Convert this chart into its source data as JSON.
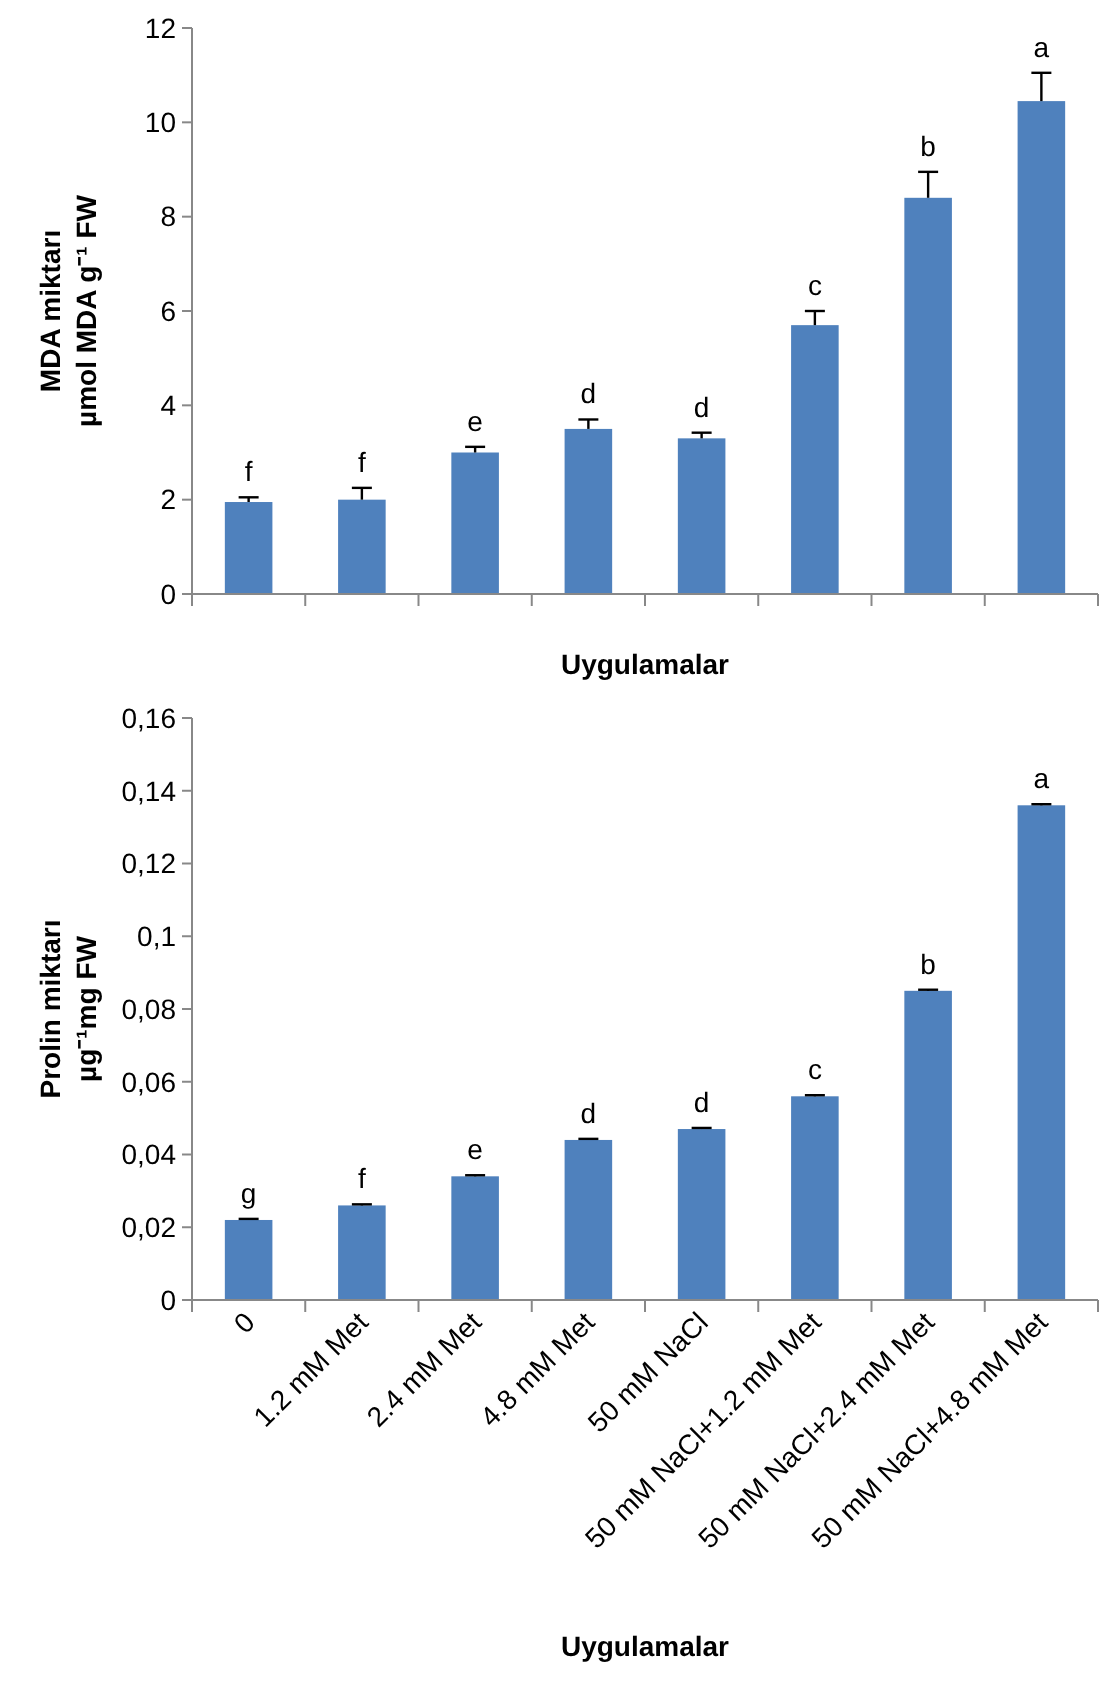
{
  "chart_data": [
    {
      "type": "bar",
      "xlabel": "Uygulamalar",
      "ylabel": "MDA miktarı\nµmol MDA g⁻¹ FW",
      "categories": [
        null,
        null,
        null,
        null,
        null,
        null,
        null,
        null
      ],
      "values": [
        1.95,
        2.0,
        3.0,
        3.5,
        3.3,
        5.7,
        8.4,
        10.45
      ],
      "color": "#4f81bd",
      "errors": [
        [
          1.95,
          2.05
        ],
        [
          2.0,
          2.25
        ],
        [
          3.0,
          3.12
        ],
        [
          3.5,
          3.7
        ],
        [
          3.3,
          3.42
        ],
        [
          5.7,
          6.0
        ],
        [
          8.4,
          8.95
        ],
        [
          10.45,
          11.05
        ]
      ],
      "value_labels": [
        "f",
        "f",
        "e",
        "d",
        "d",
        "c",
        "b",
        "a"
      ],
      "ylim": [
        0,
        12
      ],
      "yticks": [
        0,
        2,
        4,
        6,
        8,
        10,
        12
      ]
    },
    {
      "type": "bar",
      "xlabel": "Uygulamalar",
      "ylabel": "Prolin miktarı\nµg⁻¹mg FW",
      "categories": [
        "0",
        "1.2 mM Met",
        "2.4 mM Met",
        "4.8 mM Met",
        "50 mM NaCl",
        "50 mM NaCl+1.2 mM Met",
        "50 mM NaCl+2.4 mM Met",
        "50 mM NaCl+4.8 mM Met"
      ],
      "values": [
        0.022,
        0.026,
        0.034,
        0.044,
        0.047,
        0.056,
        0.085,
        0.136
      ],
      "color": "#4f81bd",
      "errors": [
        [
          0.022,
          0.0223
        ],
        [
          0.026,
          0.0263
        ],
        [
          0.034,
          0.0343
        ],
        [
          0.044,
          0.0443
        ],
        [
          0.047,
          0.0473
        ],
        [
          0.056,
          0.0563
        ],
        [
          0.085,
          0.0853
        ],
        [
          0.136,
          0.1363
        ]
      ],
      "value_labels": [
        "g",
        "f",
        "e",
        "d",
        "d",
        "c",
        "b",
        "a"
      ],
      "ylim": [
        0,
        0.16
      ],
      "yticks": [
        0,
        {
          "value": 0.02,
          "label": "0,02"
        },
        {
          "value": 0.04,
          "label": "0,04"
        },
        {
          "value": 0.06,
          "label": "0,06"
        },
        {
          "value": 0.08,
          "label": "0,08"
        },
        {
          "value": 0.1,
          "label": "0,1"
        },
        {
          "value": 0.12,
          "label": "0,12"
        },
        {
          "value": 0.14,
          "label": "0,14"
        },
        {
          "value": 0.16,
          "label": "0,16"
        }
      ]
    }
  ]
}
